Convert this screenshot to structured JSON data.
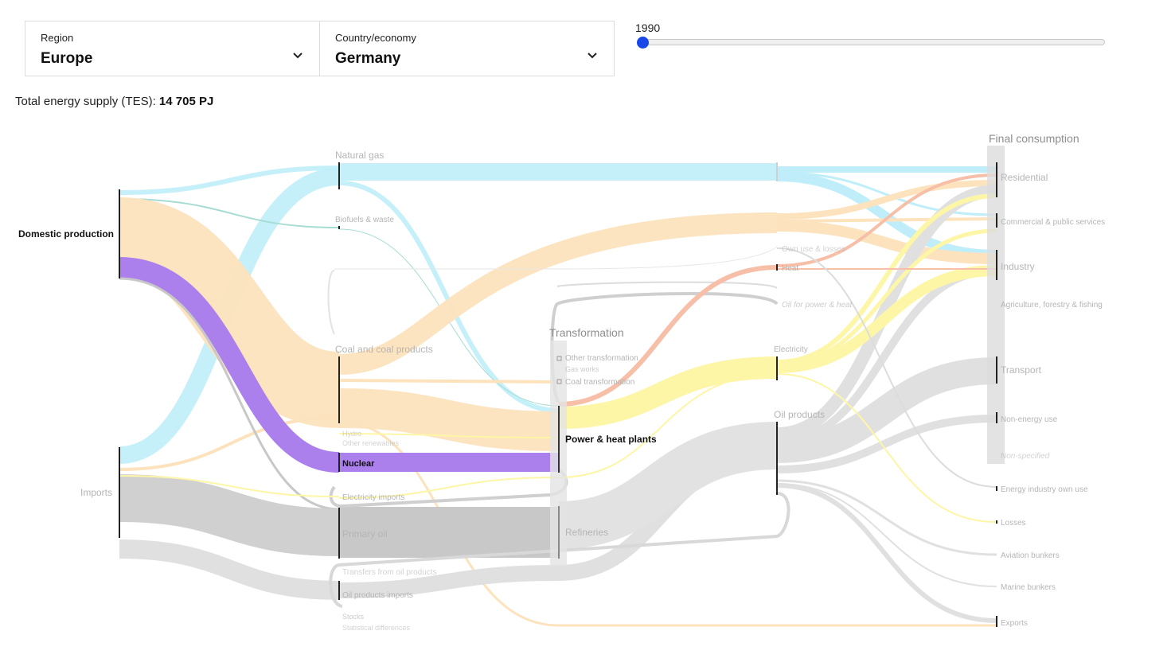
{
  "region": {
    "label": "Region",
    "value": "Europe"
  },
  "country": {
    "label": "Country/economy",
    "value": "Germany"
  },
  "year_slider": {
    "value": "1990"
  },
  "tes": {
    "label": "Total energy supply (TES):",
    "value": "14 705 PJ"
  },
  "colors": {
    "natural_gas": "#bfeefa",
    "coal": "#fde3bd",
    "nuclear": "#ab80ed",
    "oil": "#d2d2d2",
    "electricity": "#fdf6a6",
    "heat": "#f7bfa8",
    "biofuels": "#a6dcd4",
    "slider_thumb": "#1a47e8"
  },
  "supply_nodes": {
    "domestic_production": "Domestic production",
    "imports": "Imports"
  },
  "source_nodes": {
    "natural_gas": "Natural gas",
    "biofuels": "Biofuels & waste",
    "coal": "Coal and coal products",
    "hydro": "Hydro",
    "other_renewables": "Other renewables",
    "nuclear": "Nuclear",
    "electricity_imports": "Electricity imports",
    "primary_oil": "Primary oil",
    "transfers": "Transfers from oil products",
    "oil_products_imports": "Oil products imports",
    "stocks": "Stocks",
    "statistical_differences": "Statistical differences"
  },
  "transformation": {
    "heading": "Transformation",
    "other_transformation": "Other transformation",
    "gas_works": "Gas works",
    "coal_transformation": "Coal transformation",
    "power_heat": "Power & heat plants",
    "refineries": "Refineries"
  },
  "carrier_nodes": {
    "own_use": "Own use & losses",
    "heat": "Heat",
    "oil_for_power": "Oil for power & heat",
    "electricity": "Electricity",
    "oil_products": "Oil products"
  },
  "final_consumption": {
    "heading": "Final consumption",
    "residential": "Residential",
    "commercial": "Commercial & public services",
    "industry": "Industry",
    "agriculture": "Agriculture, forestry & fishing",
    "transport": "Transport",
    "non_energy": "Non-energy use",
    "non_specified": "Non-specified"
  },
  "other_uses": {
    "energy_industry": "Energy industry own use",
    "losses": "Losses",
    "aviation": "Aviation bunkers",
    "marine": "Marine bunkers",
    "exports": "Exports"
  }
}
